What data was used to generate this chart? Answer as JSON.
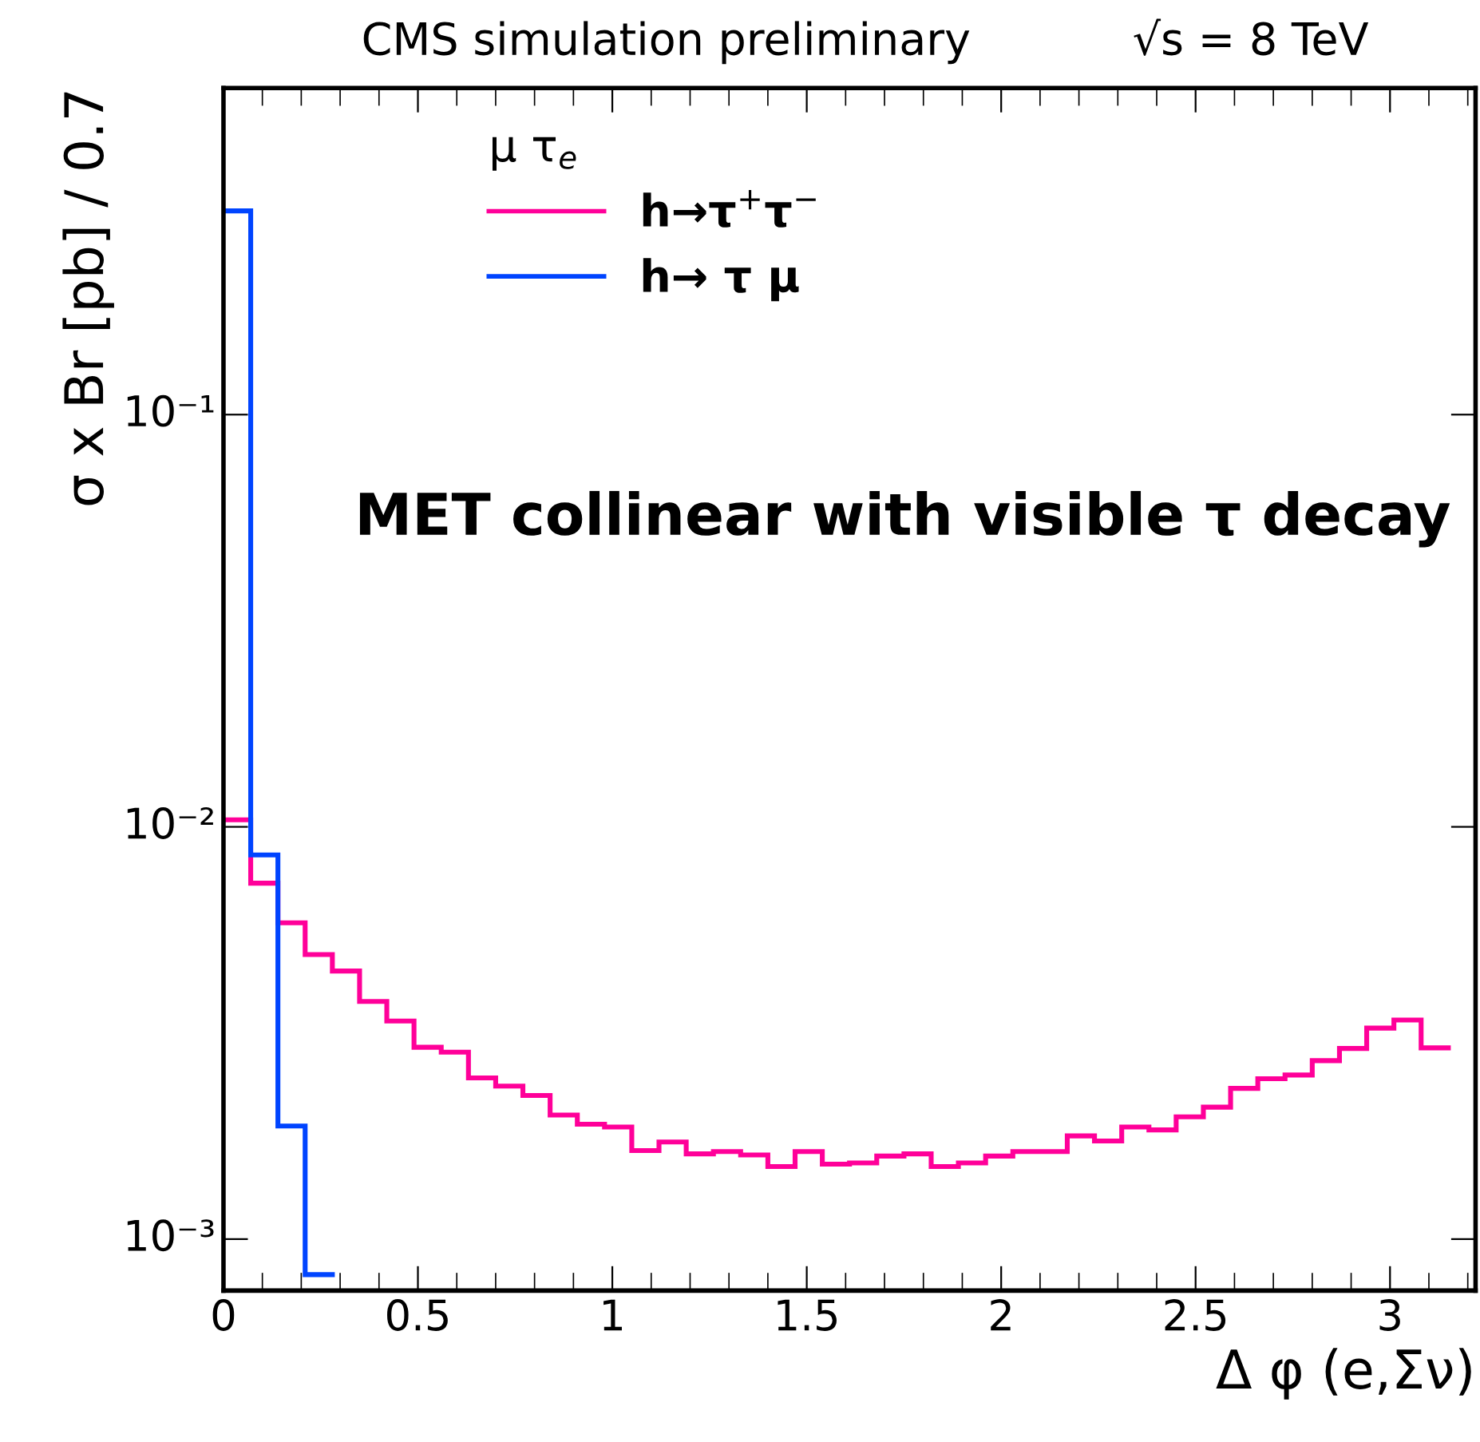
{
  "chart_data": {
    "type": "histogram",
    "title": "CMS simulation preliminary",
    "subtitle": "√s = 8 TeV",
    "xlabel": "Δ φ (e,Σν)",
    "ylabel": "σ x Br [pb] / 0.7",
    "legend_title": "μ τ$_{e}$",
    "annotations": [
      "MET collinear with visible τ decay"
    ],
    "bins": [
      0,
      0.07,
      0.14,
      0.21,
      0.28,
      0.35,
      0.42,
      0.49,
      0.56,
      0.63,
      0.7,
      0.77,
      0.84,
      0.91,
      0.98,
      1.05,
      1.12,
      1.19,
      1.26,
      1.33,
      1.4,
      1.47,
      1.54,
      1.61,
      1.68,
      1.75,
      1.82,
      1.89,
      1.96,
      2.03,
      2.1,
      2.17,
      2.24,
      2.31,
      2.38,
      2.45,
      2.52,
      2.59,
      2.66,
      2.73,
      2.8,
      2.87,
      2.94,
      3.01,
      3.08,
      3.15
    ],
    "series": [
      {
        "name": "h→τ$^{+}$τ$^{−}$",
        "color": "#ff0099",
        "values": [
          0.0104,
          0.0073,
          0.00585,
          0.0049,
          0.00447,
          0.00377,
          0.00338,
          0.00292,
          0.00284,
          0.00246,
          0.00235,
          0.00223,
          0.002,
          0.0019,
          0.00187,
          0.00164,
          0.00172,
          0.00161,
          0.00163,
          0.0016,
          0.0015,
          0.00163,
          0.00152,
          0.00153,
          0.00159,
          0.00161,
          0.0015,
          0.00153,
          0.00159,
          0.00163,
          0.00163,
          0.00178,
          0.00173,
          0.00187,
          0.00184,
          0.00198,
          0.00209,
          0.00232,
          0.00245,
          0.0025,
          0.00271,
          0.0029,
          0.00325,
          0.0034,
          0.00291
        ]
      },
      {
        "name": "h→ τ μ",
        "color": "#0044ff",
        "bins": [
          0,
          0.07,
          0.14,
          0.21,
          0.28
        ],
        "values": [
          0.312,
          0.00855,
          0.00188,
          0.00082
        ]
      }
    ],
    "xlim": [
      0,
      3.22
    ],
    "xticks": [
      0,
      0.5,
      1,
      1.5,
      2,
      2.5,
      3
    ],
    "ylim": [
      0.00075,
      0.62
    ],
    "yticks": [
      {
        "value": 0.001,
        "label": "10⁻³"
      },
      {
        "value": 0.01,
        "label": "10⁻²"
      },
      {
        "value": 0.1,
        "label": "10⁻¹"
      }
    ],
    "log": "y",
    "grid": false,
    "legend": "top left"
  }
}
